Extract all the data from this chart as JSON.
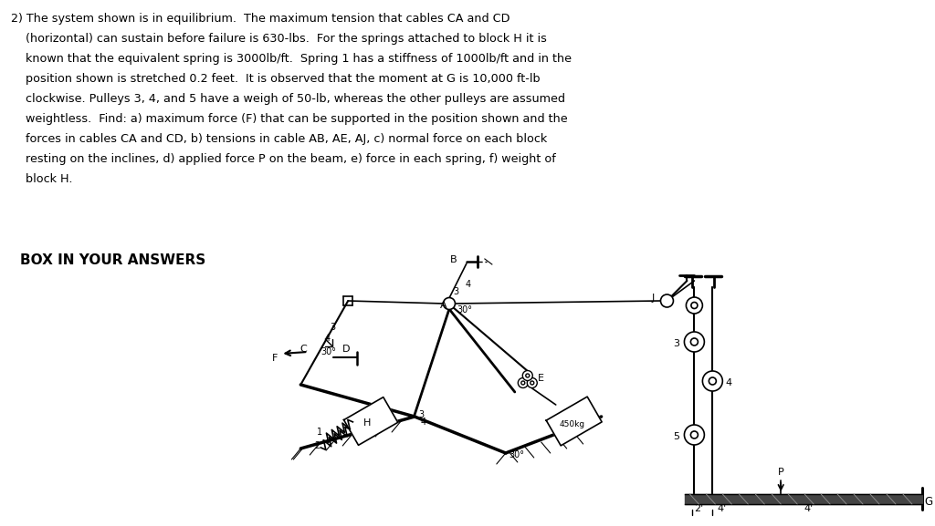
{
  "bg_color": "#ffffff",
  "text_color": "#000000",
  "title_lines": [
    "2) The system shown is in equilibrium.  The maximum tension that cables CA and CD",
    "    (horizontal) can sustain before failure is 630-lbs.  For the springs attached to block H it is",
    "    known that the equivalent spring is 3000lb/ft.  Spring 1 has a stiffness of 1000lb/ft and in the",
    "    position shown is stretched 0.2 feet.  It is observed that the moment at G is 10,000 ft-lb",
    "    clockwise. Pulleys 3, 4, and 5 have a weigh of 50-lb, whereas the other pulleys are assumed",
    "    weightless.  Find: a) maximum force (F) that can be supported in the position shown and the",
    "    forces in cables CA and CD, b) tensions in cable AB, AE, AJ, c) normal force on each block",
    "    resting on the inclines, d) applied force P on the beam, e) force in each spring, f) weight of",
    "    block H."
  ],
  "box_label": "BOX IN YOUR ANSWERS"
}
